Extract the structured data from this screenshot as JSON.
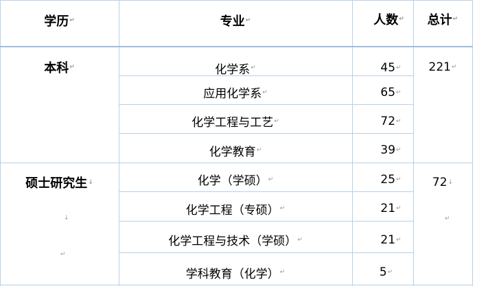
{
  "table": {
    "headers": [
      "学历",
      "专业",
      "人数",
      "总计"
    ],
    "groups": [
      {
        "degree": "本科",
        "total": "221",
        "rows": [
          {
            "major": "化学系",
            "count": "45"
          },
          {
            "major": "应用化学系",
            "count": "65"
          },
          {
            "major": "化学工程与工艺",
            "count": "72"
          },
          {
            "major": "化学教育",
            "count": "39"
          }
        ]
      },
      {
        "degree": "硕士研究生",
        "total": "72",
        "rows": [
          {
            "major": "化学（学硕）",
            "count": "25"
          },
          {
            "major": "化学工程（专硕）",
            "count": "21"
          },
          {
            "major": "化学工程与技术（学硕）",
            "count": "21"
          },
          {
            "major": "学科教育（化学）",
            "count": "5"
          }
        ]
      }
    ]
  },
  "colors": {
    "border": "#b8cfe6",
    "header_rule": "#9dbde0"
  }
}
